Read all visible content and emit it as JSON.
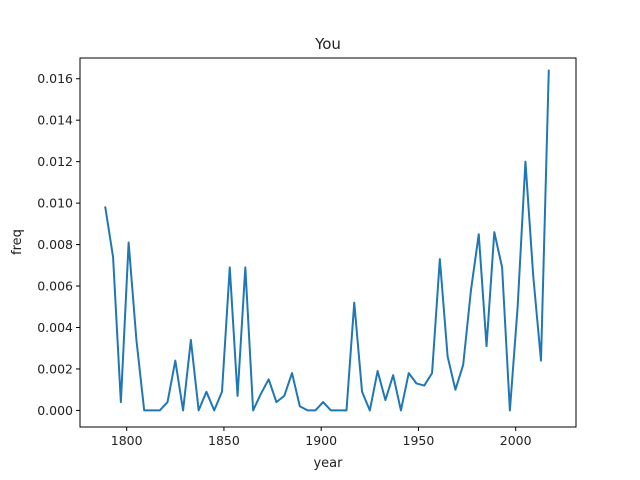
{
  "chart_data": {
    "type": "line",
    "title": "You",
    "xlabel": "year",
    "ylabel": "freq",
    "xlim": [
      1776,
      2031
    ],
    "ylim": [
      -0.0008,
      0.017
    ],
    "xticks": [
      1800,
      1850,
      1900,
      1950,
      2000
    ],
    "yticks": [
      0.0,
      0.002,
      0.004,
      0.006,
      0.008,
      0.01,
      0.012,
      0.014,
      0.016
    ],
    "ytick_labels": [
      "0.000",
      "0.002",
      "0.004",
      "0.006",
      "0.008",
      "0.010",
      "0.012",
      "0.014",
      "0.016"
    ],
    "grid": false,
    "series": [
      {
        "color": "#1f77b4",
        "x": [
          1789,
          1793,
          1797,
          1801,
          1805,
          1809,
          1813,
          1817,
          1821,
          1825,
          1829,
          1833,
          1837,
          1841,
          1845,
          1849,
          1853,
          1857,
          1861,
          1865,
          1869,
          1873,
          1877,
          1881,
          1885,
          1889,
          1893,
          1897,
          1901,
          1905,
          1909,
          1913,
          1917,
          1921,
          1925,
          1929,
          1933,
          1937,
          1941,
          1945,
          1949,
          1953,
          1957,
          1961,
          1965,
          1969,
          1973,
          1977,
          1981,
          1985,
          1989,
          1993,
          1997,
          2001,
          2005,
          2009,
          2013,
          2017
        ],
        "y": [
          0.0098,
          0.0074,
          0.0004,
          0.0081,
          0.0034,
          0.0,
          0.0,
          0.0,
          0.0004,
          0.0024,
          0.0,
          0.0034,
          0.0,
          0.0009,
          0.0,
          0.0009,
          0.0069,
          0.0007,
          0.0069,
          0.0,
          0.0008,
          0.0015,
          0.0004,
          0.0007,
          0.0018,
          0.0002,
          0.0,
          0.0,
          0.0004,
          0.0,
          0.0,
          0.0,
          0.0052,
          0.0009,
          0.0,
          0.0019,
          0.0005,
          0.0017,
          0.0,
          0.0018,
          0.0013,
          0.0012,
          0.0018,
          0.0073,
          0.0026,
          0.001,
          0.0022,
          0.0058,
          0.0085,
          0.0031,
          0.0086,
          0.0069,
          0.0,
          0.005,
          0.012,
          0.0065,
          0.0024,
          0.0164
        ]
      }
    ]
  }
}
